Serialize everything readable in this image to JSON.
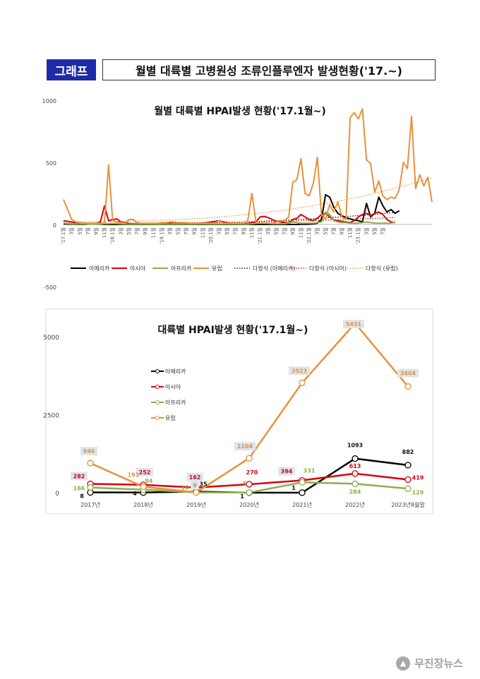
{
  "header": {
    "tag": "그래프",
    "title": "월별 대륙별 고병원성 조류인플루엔자 발생현황('17.~)"
  },
  "watermark": {
    "text": "무진장뉴스"
  },
  "colors": {
    "america": "#000000",
    "asia": "#d9000d",
    "africa": "#8bb04a",
    "europe": "#e8913a",
    "label_box": "#dbe6ef"
  },
  "chart_data": [
    {
      "type": "line",
      "title": "월별 대륙별 HPAI발생 현황('17.1월~)",
      "y_ticks": [
        "1000",
        "500",
        "0",
        "-500"
      ],
      "ylim": [
        -500,
        1000
      ],
      "grid": false,
      "legend_position": "bottom",
      "x_ticks": [
        "'17.1월",
        "3월",
        "5월",
        "7월",
        "9월",
        "11월",
        "'18.1월",
        "3월",
        "5월",
        "7월",
        "9월",
        "11월",
        "'19.1월",
        "3월",
        "5월",
        "7월",
        "9월",
        "11월",
        "'20.1월",
        "3월",
        "5월",
        "7월",
        "9월",
        "11월",
        "'21.1월",
        "3월",
        "5월",
        "7월",
        "9월",
        "11월",
        "'22.1월",
        "3월",
        "5월",
        "7월",
        "9월",
        "11월",
        "'23.1월",
        "3월",
        "5월",
        "7월"
      ],
      "series": [
        {
          "name": "아메리카",
          "key": "america",
          "values": [
            5,
            3,
            2,
            1,
            0,
            0,
            2,
            3,
            2,
            1,
            0,
            0,
            0,
            0,
            0,
            0,
            0,
            0,
            0,
            0,
            0,
            0,
            0,
            1,
            0,
            0,
            0,
            0,
            0,
            0,
            0,
            0,
            0,
            0,
            0,
            0,
            0,
            0,
            0,
            0,
            0,
            0,
            0,
            0,
            0,
            0,
            0,
            0,
            0,
            0,
            0,
            0,
            0,
            0,
            0,
            0,
            0,
            0,
            1,
            1,
            2,
            4,
            10,
            40,
            240,
            220,
            140,
            90,
            70,
            55,
            45,
            35,
            30,
            20,
            170,
            60,
            90,
            220,
            150,
            100,
            120,
            90,
            110
          ]
        },
        {
          "name": "아시아",
          "key": "asia",
          "values": [
            30,
            25,
            20,
            12,
            10,
            10,
            8,
            8,
            8,
            20,
            150,
            30,
            40,
            45,
            20,
            15,
            8,
            5,
            5,
            5,
            5,
            5,
            5,
            5,
            12,
            15,
            10,
            18,
            12,
            8,
            5,
            5,
            8,
            10,
            12,
            15,
            20,
            25,
            30,
            20,
            15,
            10,
            8,
            5,
            5,
            8,
            15,
            20,
            60,
            65,
            55,
            40,
            25,
            20,
            15,
            12,
            40,
            50,
            80,
            60,
            40,
            30,
            50,
            80,
            90,
            60,
            35,
            30,
            25,
            20,
            15,
            30,
            60,
            80,
            90,
            70,
            90,
            100,
            80,
            40,
            20,
            15
          ]
        },
        {
          "name": "아프리카",
          "key": "africa",
          "values": [
            10,
            8,
            5,
            4,
            3,
            3,
            2,
            2,
            2,
            3,
            5,
            5,
            8,
            6,
            4,
            3,
            2,
            2,
            2,
            2,
            2,
            2,
            2,
            2,
            2,
            2,
            2,
            2,
            2,
            2,
            2,
            2,
            2,
            3,
            3,
            3,
            2,
            2,
            3,
            3,
            3,
            3,
            3,
            2,
            2,
            2,
            5,
            8,
            10,
            10,
            8,
            5,
            5,
            5,
            5,
            10,
            20,
            15,
            10,
            10,
            10,
            10,
            15,
            20,
            100,
            80,
            30,
            20,
            15,
            15,
            10,
            10,
            10,
            15,
            20,
            15,
            10,
            10,
            10,
            10,
            10,
            20
          ]
        },
        {
          "name": "유럽",
          "key": "europe",
          "values": [
            200,
            120,
            40,
            20,
            15,
            10,
            10,
            10,
            10,
            10,
            10,
            480,
            30,
            20,
            15,
            10,
            40,
            40,
            15,
            10,
            10,
            10,
            10,
            10,
            15,
            15,
            20,
            20,
            15,
            15,
            15,
            10,
            10,
            10,
            10,
            10,
            10,
            10,
            30,
            10,
            10,
            10,
            10,
            10,
            10,
            30,
            250,
            20,
            10,
            10,
            10,
            10,
            20,
            30,
            30,
            60,
            340,
            360,
            530,
            250,
            230,
            330,
            540,
            80,
            40,
            160,
            100,
            180,
            60,
            40,
            860,
            900,
            850,
            930,
            520,
            490,
            260,
            350,
            230,
            200,
            220,
            210,
            280,
            500,
            450,
            870,
            290,
            400,
            310,
            380,
            180
          ]
        }
      ],
      "trend_legend": [
        "다항식 (아메리카)",
        "다항식 (아시아)",
        "다항식 (유럽)"
      ]
    },
    {
      "type": "line",
      "title": "대륙별 HPAI발생 현황('17.1월~)",
      "categories": [
        "2017년",
        "2018년",
        "2019년",
        "2020년",
        "2021년",
        "2022년",
        "2023년8월말"
      ],
      "y_ticks": [
        "5000",
        "2500",
        "0"
      ],
      "ylim": [
        0,
        5431
      ],
      "grid": false,
      "legend_position": "left",
      "series": [
        {
          "name": "아메리카",
          "key": "america",
          "values": [
            8,
            4,
            35,
            1,
            1,
            1093,
            882
          ],
          "labels": [
            "8",
            "4",
            "35",
            "1",
            "1",
            "1093",
            "882"
          ]
        },
        {
          "name": "아시아",
          "key": "asia",
          "values": [
            282,
            252,
            162,
            270,
            394,
            613,
            419
          ],
          "labels": [
            "282",
            "252",
            "162",
            "270",
            "394",
            "613",
            "419"
          ]
        },
        {
          "name": "아프리카",
          "key": "africa",
          "values": [
            166,
            94,
            10,
            5,
            331,
            284,
            129
          ],
          "labels": [
            "166",
            "94",
            "10",
            "5",
            "331",
            "284",
            "129"
          ]
        },
        {
          "name": "유럽",
          "key": "europe",
          "values": [
            946,
            191,
            9,
            1104,
            3523,
            5431,
            3404
          ],
          "labels": [
            "946",
            "191",
            "9",
            "1104",
            "3523",
            "5431",
            "3404"
          ]
        }
      ]
    }
  ]
}
